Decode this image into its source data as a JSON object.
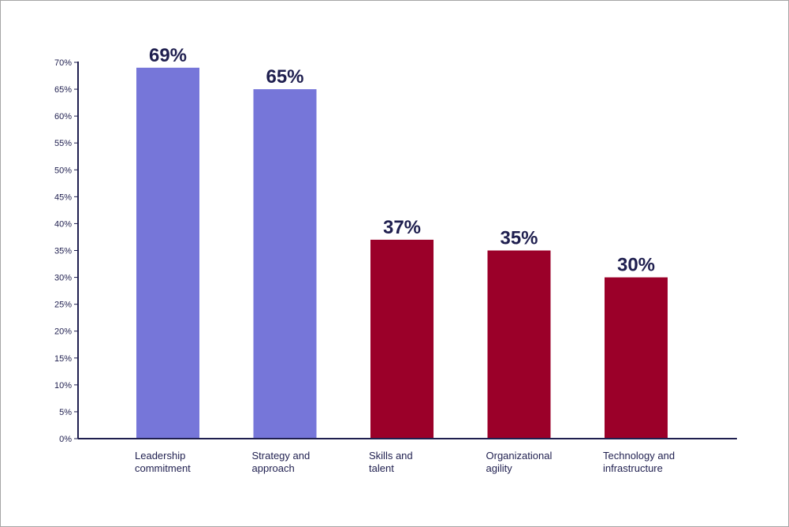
{
  "chart_data": {
    "type": "bar",
    "categories": [
      [
        "Leadership",
        "commitment"
      ],
      [
        "Strategy and",
        "approach"
      ],
      [
        "Skills and",
        "talent"
      ],
      [
        "Organizational",
        "agility"
      ],
      [
        "Technology and",
        "infrastructure"
      ]
    ],
    "values": [
      69,
      65,
      37,
      35,
      30
    ],
    "data_labels": [
      "69%",
      "65%",
      "37%",
      "35%",
      "30%"
    ],
    "bar_colors": [
      "#7676d9",
      "#7676d9",
      "#9b0029",
      "#9b0029",
      "#9b0029"
    ],
    "ylim": [
      0,
      70
    ],
    "yticks": [
      0,
      5,
      10,
      15,
      20,
      25,
      30,
      35,
      40,
      45,
      50,
      55,
      60,
      65,
      70
    ],
    "ytick_labels": [
      "0%",
      "5%",
      "10%",
      "15%",
      "20%",
      "25%",
      "30%",
      "35%",
      "40%",
      "45%",
      "50%",
      "55%",
      "60%",
      "65%",
      "70%"
    ],
    "axis_color": "#1f1f4f",
    "grid": false,
    "title": "",
    "xlabel": "",
    "ylabel": ""
  }
}
